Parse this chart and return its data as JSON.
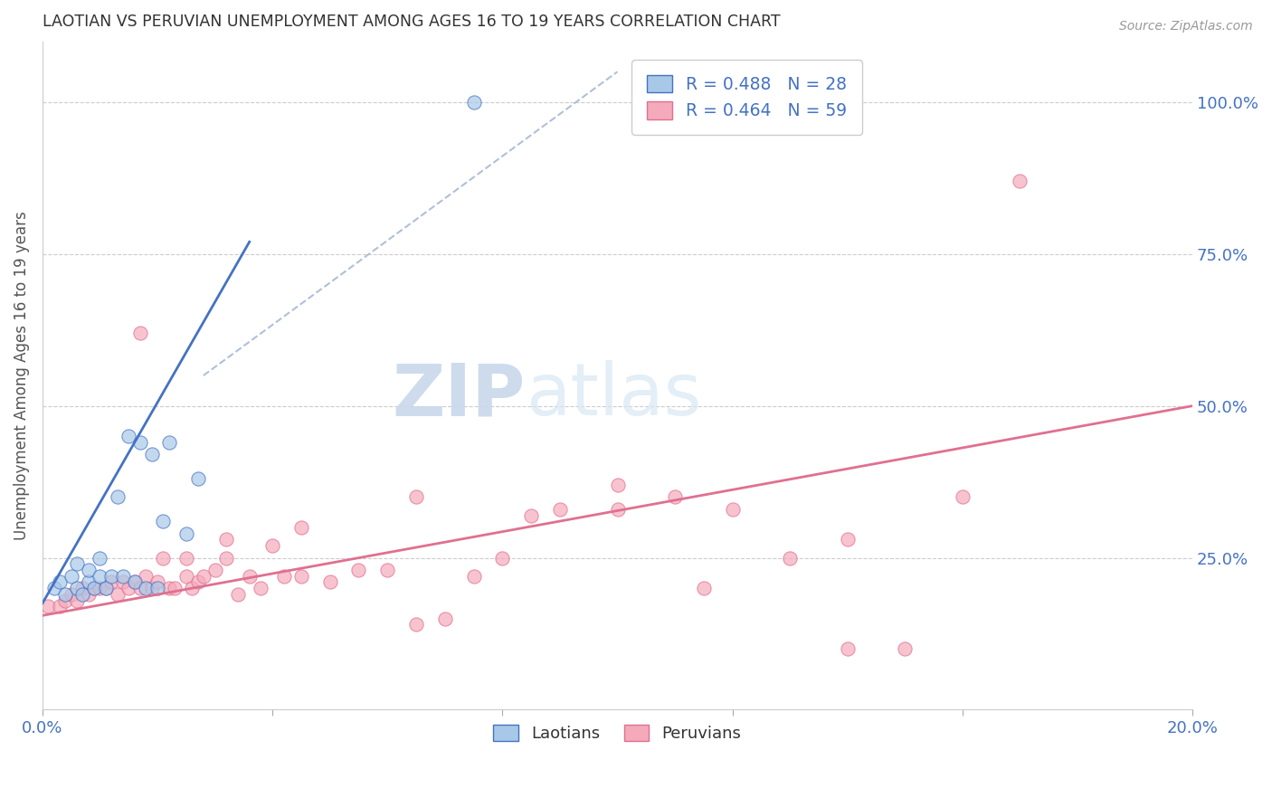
{
  "title": "LAOTIAN VS PERUVIAN UNEMPLOYMENT AMONG AGES 16 TO 19 YEARS CORRELATION CHART",
  "source": "Source: ZipAtlas.com",
  "ylabel": "Unemployment Among Ages 16 to 19 years",
  "xlim": [
    0.0,
    0.2
  ],
  "ylim": [
    0.0,
    1.1
  ],
  "right_yticks": [
    0.25,
    0.5,
    0.75,
    1.0
  ],
  "right_yticklabels": [
    "25.0%",
    "50.0%",
    "75.0%",
    "100.0%"
  ],
  "xtick_vals": [
    0.0,
    0.04,
    0.08,
    0.12,
    0.16,
    0.2
  ],
  "blue_color": "#a8c8e8",
  "pink_color": "#f4aabb",
  "blue_line_color": "#4472c4",
  "pink_line_color": "#e07090",
  "axis_label_color": "#4472c4",
  "grid_color": "#cccccc",
  "legend_blue_R": "R = 0.488",
  "legend_blue_N": "N = 28",
  "legend_pink_R": "R = 0.464",
  "legend_pink_N": "N = 59",
  "blue_scatter_x": [
    0.002,
    0.003,
    0.004,
    0.005,
    0.006,
    0.006,
    0.007,
    0.008,
    0.008,
    0.009,
    0.01,
    0.01,
    0.011,
    0.012,
    0.013,
    0.014,
    0.015,
    0.016,
    0.017,
    0.018,
    0.019,
    0.02,
    0.021,
    0.022,
    0.025,
    0.027,
    0.075,
    0.12
  ],
  "blue_scatter_y": [
    0.2,
    0.21,
    0.19,
    0.22,
    0.2,
    0.24,
    0.19,
    0.21,
    0.23,
    0.2,
    0.22,
    0.25,
    0.2,
    0.22,
    0.35,
    0.22,
    0.45,
    0.21,
    0.44,
    0.2,
    0.42,
    0.2,
    0.31,
    0.44,
    0.29,
    0.38,
    1.0,
    1.0
  ],
  "pink_scatter_x": [
    0.001,
    0.003,
    0.004,
    0.005,
    0.006,
    0.007,
    0.008,
    0.009,
    0.01,
    0.011,
    0.012,
    0.013,
    0.014,
    0.015,
    0.016,
    0.017,
    0.018,
    0.019,
    0.02,
    0.021,
    0.022,
    0.023,
    0.025,
    0.026,
    0.027,
    0.028,
    0.03,
    0.032,
    0.034,
    0.036,
    0.038,
    0.04,
    0.042,
    0.045,
    0.05,
    0.055,
    0.06,
    0.065,
    0.07,
    0.075,
    0.08,
    0.09,
    0.1,
    0.11,
    0.12,
    0.13,
    0.14,
    0.15,
    0.16,
    0.017,
    0.025,
    0.032,
    0.045,
    0.065,
    0.085,
    0.1,
    0.115,
    0.14,
    0.17
  ],
  "pink_scatter_y": [
    0.17,
    0.17,
    0.18,
    0.19,
    0.18,
    0.2,
    0.19,
    0.2,
    0.2,
    0.2,
    0.21,
    0.19,
    0.21,
    0.2,
    0.21,
    0.2,
    0.22,
    0.2,
    0.21,
    0.25,
    0.2,
    0.2,
    0.22,
    0.2,
    0.21,
    0.22,
    0.23,
    0.25,
    0.19,
    0.22,
    0.2,
    0.27,
    0.22,
    0.22,
    0.21,
    0.23,
    0.23,
    0.14,
    0.15,
    0.22,
    0.25,
    0.33,
    0.33,
    0.35,
    0.33,
    0.25,
    0.1,
    0.1,
    0.35,
    0.62,
    0.25,
    0.28,
    0.3,
    0.35,
    0.32,
    0.37,
    0.2,
    0.28,
    0.87
  ],
  "blue_trend_x": [
    0.0,
    0.036
  ],
  "blue_trend_y": [
    0.175,
    0.77
  ],
  "pink_trend_x": [
    0.0,
    0.2
  ],
  "pink_trend_y": [
    0.155,
    0.5
  ],
  "diag_line_x": [
    0.028,
    0.1
  ],
  "diag_line_y": [
    0.55,
    1.05
  ],
  "watermark_zip": "ZIP",
  "watermark_atlas": "atlas",
  "background_color": "#ffffff"
}
